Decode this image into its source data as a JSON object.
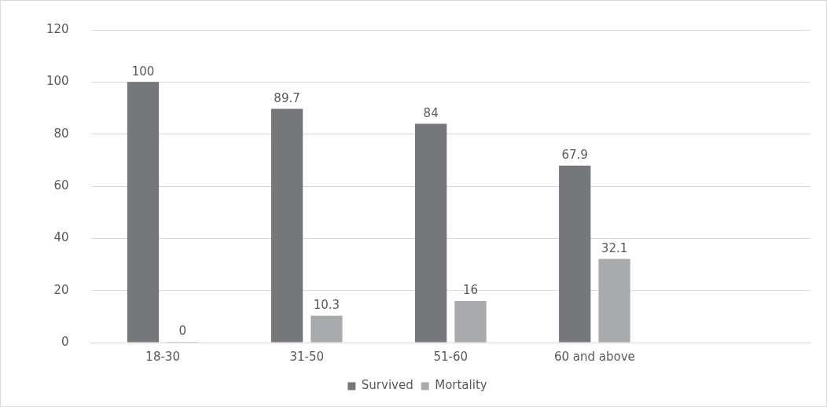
{
  "chart_data": {
    "type": "bar",
    "categories": [
      "18-30",
      "31-50",
      "51-60",
      "60 and above",
      null
    ],
    "series": [
      {
        "name": "Survived",
        "color": "#76777b",
        "values": [
          100,
          89.7,
          84,
          67.9,
          null
        ]
      },
      {
        "name": "Mortality",
        "color": "#a9aaac",
        "values": [
          0,
          10.3,
          16,
          32.1,
          null
        ]
      }
    ],
    "ylim": [
      0,
      120
    ],
    "yticks": [
      0,
      20,
      40,
      60,
      80,
      100,
      120
    ],
    "grid": "y",
    "legend": "bottom",
    "data_labels": true
  }
}
